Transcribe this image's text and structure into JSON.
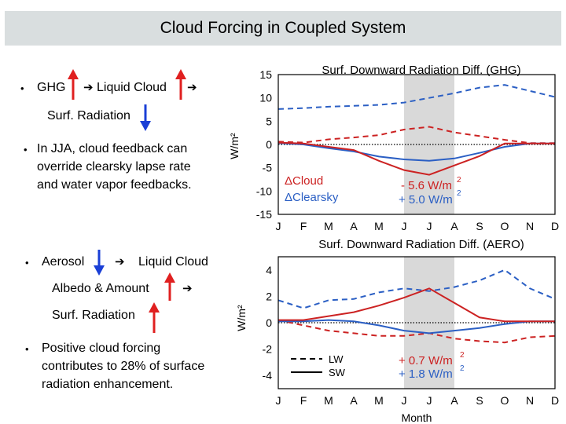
{
  "slide": {
    "title": "Cloud Forcing in Coupled System",
    "left_text": {
      "ghg_label": "GHG",
      "liquid_cloud_label": "Liquid Cloud",
      "surf_radiation_1": "Surf. Radiation",
      "jja_line1": "In JJA, cloud feedback can",
      "jja_line2": "override clearsky lapse rate",
      "jja_line3": "and water vapor feedbacks.",
      "aerosol_label": "Aerosol",
      "liquid_cloud_label2": "Liquid Cloud",
      "albedo_amount": "Albedo & Amount",
      "surf_radiation_2": "Surf. Radiation",
      "pos_line1": "Positive cloud forcing",
      "pos_line2": "contributes to 28% of surface",
      "pos_line3": "radiation enhancement.",
      "arrow_glyph": "➔"
    },
    "colors": {
      "up_arrow": "#e02020",
      "down_arrow": "#1a3fd6",
      "cloud": "#cc2222",
      "clearsky": "#2b5fc4",
      "shade": "#d9d9d9"
    }
  },
  "chart_data": [
    {
      "type": "line",
      "title": "Surf. Downward Radiation Diff. (GHG)",
      "ylabel": "W/m²",
      "xlabel": "",
      "categories": [
        "J",
        "F",
        "M",
        "A",
        "M",
        "J",
        "J",
        "A",
        "S",
        "O",
        "N",
        "D"
      ],
      "ylim": [
        -15,
        15
      ],
      "yticks": [
        "15",
        "10",
        "5",
        "0",
        "-5",
        "-10",
        "-15"
      ],
      "ytick_values": [
        15,
        10,
        5,
        0,
        -5,
        -10,
        -15
      ],
      "shaded_months": [
        "J",
        "J",
        "A"
      ],
      "annotations": {
        "cloud_label": "ΔCloud",
        "clearsky_label": "ΔClearsky",
        "cloud_value": "- 5.6 W/m",
        "clearsky_value": "+ 5.0 W/m",
        "sup": "2"
      },
      "series": [
        {
          "name": "ΔClearsky LW",
          "style": "dashed",
          "color": "#2b5fc4",
          "values": [
            7.6,
            7.8,
            8.1,
            8.3,
            8.5,
            9.0,
            10.0,
            11.0,
            12.2,
            12.8,
            11.5,
            10.2
          ]
        },
        {
          "name": "ΔCloud LW",
          "style": "dashed",
          "color": "#cc2222",
          "values": [
            0.6,
            0.4,
            1.1,
            1.5,
            2.0,
            3.2,
            3.8,
            2.6,
            1.8,
            1.0,
            0.3,
            0.3
          ]
        },
        {
          "name": "ΔClearsky SW",
          "style": "solid",
          "color": "#2b5fc4",
          "values": [
            0.3,
            0.0,
            -0.8,
            -1.5,
            -2.6,
            -3.2,
            -3.5,
            -3.0,
            -1.8,
            -0.5,
            0.2,
            0.2
          ]
        },
        {
          "name": "ΔCloud SW",
          "style": "solid",
          "color": "#cc2222",
          "values": [
            0.4,
            0.2,
            -0.5,
            -1.2,
            -3.5,
            -5.5,
            -6.5,
            -4.5,
            -2.5,
            0.2,
            0.2,
            0.2
          ]
        }
      ]
    },
    {
      "type": "line",
      "title": "Surf. Downward Radiation Diff. (AERO)",
      "ylabel": "W/m²",
      "xlabel": "Month",
      "categories": [
        "J",
        "F",
        "M",
        "A",
        "M",
        "J",
        "J",
        "A",
        "S",
        "O",
        "N",
        "D"
      ],
      "ylim": [
        -5,
        5
      ],
      "yticks": [
        "4",
        "2",
        "0",
        "-2",
        "-4"
      ],
      "ytick_values": [
        4,
        2,
        0,
        -2,
        -4
      ],
      "shaded_months": [
        "J",
        "J",
        "A"
      ],
      "legend": {
        "lw": "LW",
        "sw": "SW"
      },
      "annotations": {
        "cloud_value": "+ 0.7 W/m",
        "clearsky_value": "+ 1.8 W/m",
        "sup": "2"
      },
      "series": [
        {
          "name": "ΔClearsky LW",
          "style": "dashed",
          "color": "#2b5fc4",
          "values": [
            1.7,
            1.1,
            1.7,
            1.8,
            2.3,
            2.6,
            2.4,
            2.7,
            3.2,
            4.0,
            2.6,
            1.8
          ]
        },
        {
          "name": "ΔCloud LW",
          "style": "dashed",
          "color": "#cc2222",
          "values": [
            0.2,
            -0.2,
            -0.6,
            -0.8,
            -1.0,
            -1.0,
            -0.8,
            -1.2,
            -1.4,
            -1.5,
            -1.1,
            -1.0
          ]
        },
        {
          "name": "ΔClearsky SW",
          "style": "solid",
          "color": "#2b5fc4",
          "values": [
            0.1,
            0.1,
            0.2,
            0.1,
            -0.2,
            -0.6,
            -0.8,
            -0.6,
            -0.4,
            -0.1,
            0.1,
            0.1
          ]
        },
        {
          "name": "ΔCloud SW",
          "style": "solid",
          "color": "#cc2222",
          "values": [
            0.2,
            0.2,
            0.5,
            0.8,
            1.3,
            1.9,
            2.6,
            1.5,
            0.4,
            0.1,
            0.1,
            0.1
          ]
        }
      ]
    }
  ]
}
